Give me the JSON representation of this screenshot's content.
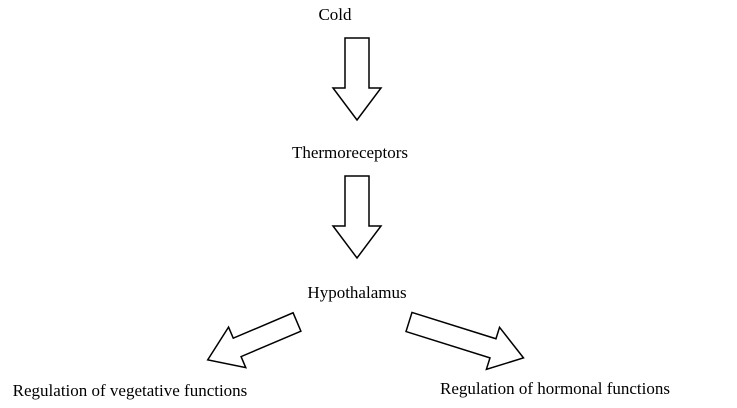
{
  "nodes": [
    {
      "label": "Cold"
    },
    {
      "label": "Thermoreceptors"
    },
    {
      "label": "Hypothalamus"
    },
    {
      "label": "Regulation of vegetative functions"
    },
    {
      "label": "Regulation of hormonal functions"
    }
  ]
}
